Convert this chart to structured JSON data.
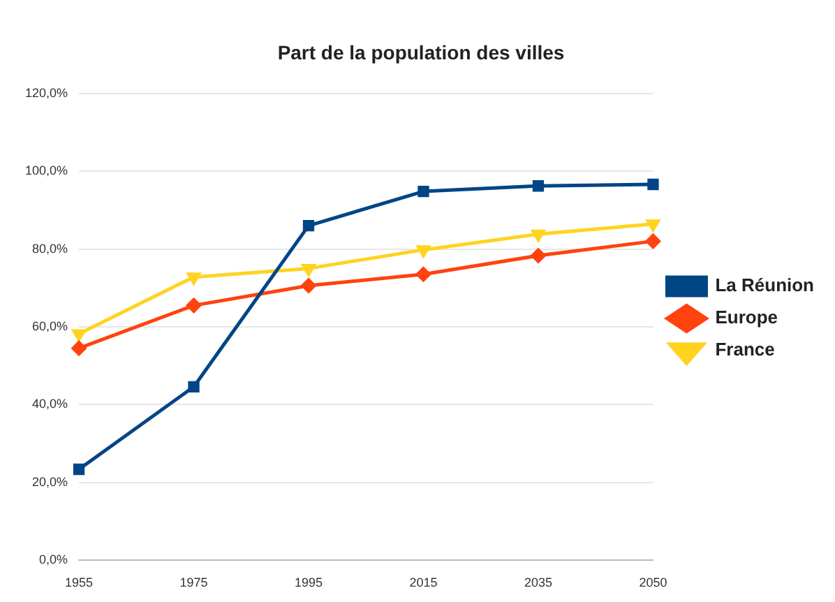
{
  "chart_data": {
    "type": "line",
    "title": "Part de la population des villes",
    "categories": [
      "1955",
      "1975",
      "1995",
      "2015",
      "2035",
      "2050"
    ],
    "series": [
      {
        "name": "La Réunion",
        "color": "#004586",
        "marker": "square",
        "values": [
          23.4,
          44.6,
          86,
          94.8,
          96.2,
          96.6
        ]
      },
      {
        "name": "Europe",
        "color": "#ff420e",
        "marker": "diamond",
        "values": [
          54.5,
          65.5,
          70.6,
          73.5,
          78.3,
          82
        ]
      },
      {
        "name": "France",
        "color": "#ffd320",
        "marker": "triangle",
        "values": [
          58.2,
          72.8,
          75,
          79.8,
          83.8,
          86.4
        ]
      }
    ],
    "ylim": [
      0,
      120
    ],
    "yticks": [
      {
        "value": 0,
        "label": "0,0%"
      },
      {
        "value": 20,
        "label": "20,0%"
      },
      {
        "value": 40,
        "label": "40,0%"
      },
      {
        "value": 60,
        "label": "60,0%"
      },
      {
        "value": 80,
        "label": "80,0%"
      },
      {
        "value": 100,
        "label": "100,0%"
      },
      {
        "value": 120,
        "label": "120,0%"
      }
    ],
    "grid": "y",
    "legend": "right"
  }
}
